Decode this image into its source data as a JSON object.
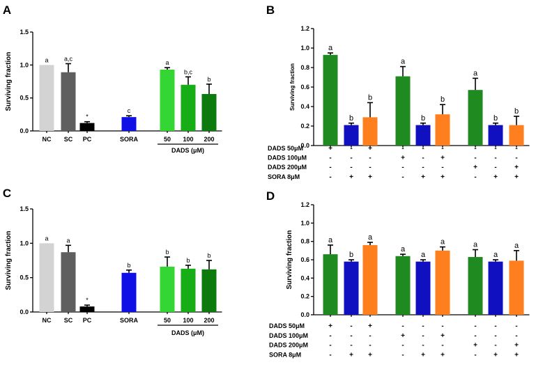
{
  "chart_data": [
    {
      "panel": "A",
      "type": "bar",
      "ylabel": "Surviving fraction",
      "ylim": [
        0,
        1.5
      ],
      "yticks": [
        "0.0",
        "0.5",
        "1.0",
        "1.5"
      ],
      "categories": [
        "NC",
        "SC",
        "PC",
        "SORA",
        "50",
        "100",
        "200"
      ],
      "group_label": "DADS (μM)",
      "values": [
        1.0,
        0.89,
        0.12,
        0.21,
        0.93,
        0.7,
        0.56
      ],
      "errors": [
        0,
        0.13,
        0.02,
        0.02,
        0.03,
        0.12,
        0.15
      ],
      "annotations": [
        "a",
        "a,c",
        "*",
        "c",
        "a",
        "b,c",
        "b"
      ],
      "colors": [
        "#d3d3d3",
        "#5f5f5f",
        "#000000",
        "#1010e6",
        "#33d633",
        "#17ad17",
        "#0d7a0d"
      ]
    },
    {
      "panel": "B",
      "type": "bar",
      "ylabel": "Surviving fraction",
      "ylim": [
        0,
        1.2
      ],
      "yticks": [
        "0.0",
        "0.2",
        "0.4",
        "0.6",
        "0.8",
        "1.0",
        "1.2"
      ],
      "values": [
        0.93,
        0.21,
        0.29,
        0.71,
        0.21,
        0.32,
        0.57,
        0.21,
        0.21
      ],
      "errors": [
        0.02,
        0.02,
        0.15,
        0.1,
        0.02,
        0.1,
        0.12,
        0.02,
        0.09
      ],
      "annotations": [
        "a",
        "b",
        "b",
        "a",
        "b",
        "b",
        "a",
        "b",
        "b"
      ],
      "colors": [
        "#1f8a1f",
        "#1010c0",
        "#ff7f1f",
        "#1f8a1f",
        "#1010c0",
        "#ff7f1f",
        "#1f8a1f",
        "#1010c0",
        "#ff7f1f"
      ],
      "rows": [
        {
          "label": "DADS 50μM",
          "marks": [
            "+",
            "-",
            "+",
            "-",
            "-",
            "-",
            "-",
            "-",
            "-"
          ]
        },
        {
          "label": "DADS 100μM",
          "marks": [
            "-",
            "-",
            "-",
            "+",
            "-",
            "+",
            "-",
            "-",
            "-"
          ]
        },
        {
          "label": "DADS 200μM",
          "marks": [
            "-",
            "-",
            "-",
            "-",
            "-",
            "-",
            "+",
            "-",
            "+"
          ]
        },
        {
          "label": "SORA 8μM",
          "marks": [
            "-",
            "+",
            "+",
            "-",
            "+",
            "+",
            "-",
            "+",
            "+"
          ]
        }
      ]
    },
    {
      "panel": "C",
      "type": "bar",
      "ylabel": "Surviving fraction",
      "ylim": [
        0,
        1.5
      ],
      "yticks": [
        "0.0",
        "0.5",
        "1.0",
        "1.5"
      ],
      "categories": [
        "NC",
        "SC",
        "PC",
        "SORA",
        "50",
        "100",
        "200"
      ],
      "group_label": "DADS (μM)",
      "values": [
        1.0,
        0.87,
        0.08,
        0.57,
        0.66,
        0.63,
        0.62
      ],
      "errors": [
        0,
        0.1,
        0.02,
        0.04,
        0.14,
        0.05,
        0.13
      ],
      "annotations": [
        "a",
        "a",
        "*",
        "b",
        "b",
        "b",
        "b"
      ],
      "colors": [
        "#d3d3d3",
        "#5f5f5f",
        "#000000",
        "#1010e6",
        "#33d633",
        "#17ad17",
        "#0d7a0d"
      ]
    },
    {
      "panel": "D",
      "type": "bar",
      "ylabel": "Surviving fraction",
      "ylim": [
        0,
        1.2
      ],
      "yticks": [
        "0.0",
        "0.2",
        "0.4",
        "0.6",
        "0.8",
        "1.0",
        "1.2"
      ],
      "values": [
        0.66,
        0.58,
        0.76,
        0.64,
        0.58,
        0.7,
        0.63,
        0.58,
        0.59
      ],
      "errors": [
        0.1,
        0.02,
        0.03,
        0.02,
        0.02,
        0.04,
        0.08,
        0.02,
        0.11
      ],
      "annotations": [
        "a",
        "b",
        "a",
        "a",
        "a",
        "a",
        "a",
        "a",
        "a"
      ],
      "colors": [
        "#1f8a1f",
        "#1010c0",
        "#ff7f1f",
        "#1f8a1f",
        "#1010c0",
        "#ff7f1f",
        "#1f8a1f",
        "#1010c0",
        "#ff7f1f"
      ],
      "rows": [
        {
          "label": "DADS 50μM",
          "marks": [
            "+",
            "-",
            "+",
            "-",
            "-",
            "-",
            "-",
            "-",
            "-"
          ]
        },
        {
          "label": "DADS 100μM",
          "marks": [
            "-",
            "-",
            "-",
            "+",
            "-",
            "+",
            "-",
            "-",
            "-"
          ]
        },
        {
          "label": "DADS 200μM",
          "marks": [
            "-",
            "-",
            "-",
            "-",
            "-",
            "-",
            "+",
            "-",
            "+"
          ]
        },
        {
          "label": "SORA 8μM",
          "marks": [
            "-",
            "+",
            "+",
            "-",
            "+",
            "+",
            "-",
            "+",
            "+"
          ]
        }
      ]
    }
  ]
}
